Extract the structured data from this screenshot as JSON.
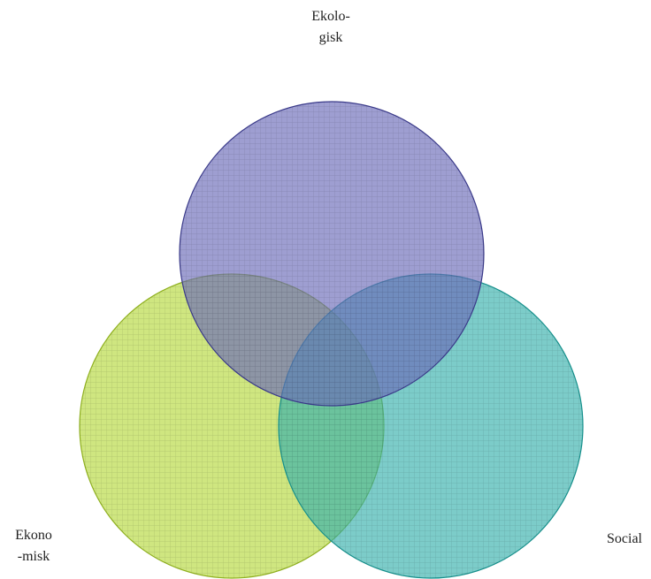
{
  "diagram": {
    "type": "venn",
    "circles": [
      {
        "id": "ekologisk",
        "label_lines": [
          "Ekolo-",
          "gisk"
        ],
        "fill": "#6a6ab8",
        "stroke": "#3a3a8a"
      },
      {
        "id": "ekonomisk",
        "label_lines": [
          "Ekono",
          "-misk"
        ],
        "fill": "#b5d93c",
        "stroke": "#8fb01e"
      },
      {
        "id": "social",
        "label_lines": [
          "Social"
        ],
        "fill": "#35b0ac",
        "stroke": "#16908c"
      }
    ]
  }
}
